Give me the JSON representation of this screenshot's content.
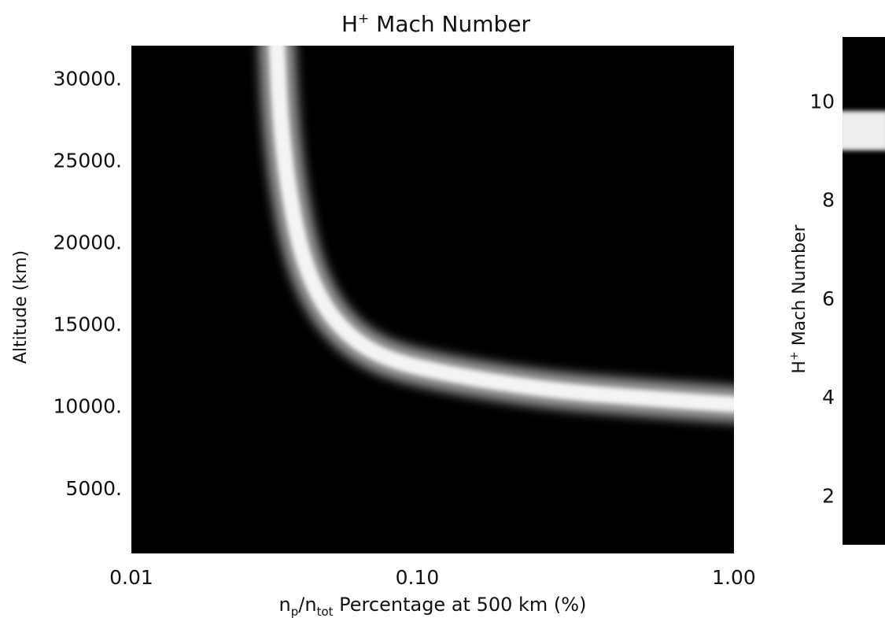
{
  "chart_data": {
    "type": "heatmap",
    "title": {
      "prefix": "H",
      "sup": "+",
      "rest": " Mach Number"
    },
    "xlabel": {
      "n1": "n",
      "sub1": "p",
      "slash": "/n",
      "sub2": "tot",
      "rest": " Percentage at 500 km (%)"
    },
    "ylabel": "Altitude (km)",
    "x_scale": "log",
    "xlim": [
      0.0125,
      1.0
    ],
    "ylim": [
      1000,
      32000
    ],
    "x_ticks": [
      {
        "value": 0.0125,
        "label": "0.01"
      },
      {
        "value": 0.1,
        "label": "0.10"
      },
      {
        "value": 1.0,
        "label": "1.00"
      }
    ],
    "y_ticks": [
      {
        "value": 30000,
        "label": "30000."
      },
      {
        "value": 25000,
        "label": "25000."
      },
      {
        "value": 20000,
        "label": "20000."
      },
      {
        "value": 15000,
        "label": "15000."
      },
      {
        "value": 10000,
        "label": "10000."
      },
      {
        "value": 5000,
        "label": "5000."
      }
    ],
    "colorbar": {
      "label": {
        "prefix": "H",
        "sup": "+",
        "rest": " Mach Number"
      },
      "range": [
        1,
        11.3
      ],
      "ticks": [
        {
          "value": 10,
          "label": "10"
        },
        {
          "value": 8,
          "label": "8"
        },
        {
          "value": 6,
          "label": "6"
        },
        {
          "value": 4,
          "label": "4"
        },
        {
          "value": 2,
          "label": "2"
        }
      ],
      "bright_band": [
        9.0,
        9.8
      ]
    },
    "bright_band_curve": [
      {
        "x": 0.036,
        "y": 32000
      },
      {
        "x": 0.037,
        "y": 27000
      },
      {
        "x": 0.04,
        "y": 22000
      },
      {
        "x": 0.045,
        "y": 18000
      },
      {
        "x": 0.055,
        "y": 15000
      },
      {
        "x": 0.075,
        "y": 13000
      },
      {
        "x": 0.12,
        "y": 12000
      },
      {
        "x": 0.25,
        "y": 11000
      },
      {
        "x": 0.5,
        "y": 10500
      },
      {
        "x": 1.0,
        "y": 10100
      }
    ]
  }
}
